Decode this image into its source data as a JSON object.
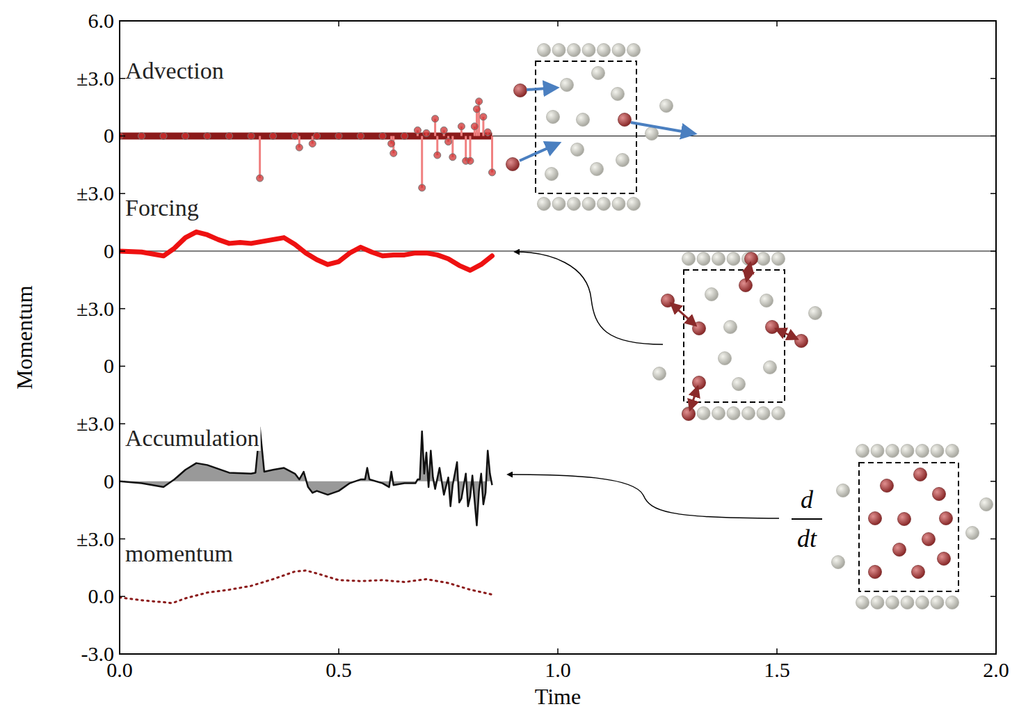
{
  "chart_data": [
    {
      "type": "stem",
      "title": "Advection",
      "xlim": [
        0,
        2
      ],
      "ylim": [
        -3,
        6
      ],
      "yticks": [
        0,
        {
          "value": 3,
          "label": "±3.0"
        },
        {
          "value": 6,
          "label": "6.0"
        }
      ],
      "series": [
        {
          "name": "Advection",
          "color": "#d03030",
          "type": "stem",
          "marker": "circle",
          "x": [
            0,
            0.05,
            0.1,
            0.15,
            0.2,
            0.25,
            0.3,
            0.32,
            0.35,
            0.4,
            0.41,
            0.44,
            0.45,
            0.5,
            0.55,
            0.6,
            0.62,
            0.625,
            0.65,
            0.68,
            0.69,
            0.7,
            0.72,
            0.725,
            0.74,
            0.75,
            0.76,
            0.78,
            0.79,
            0.8,
            0.81,
            0.815,
            0.82,
            0.83,
            0.84,
            0.85
          ],
          "values": [
            0,
            0,
            0,
            0,
            0,
            0,
            0,
            -2.2,
            0,
            0,
            -0.6,
            -0.4,
            0,
            0,
            0,
            0,
            -0.4,
            -0.9,
            0,
            0.3,
            -2.7,
            0.15,
            0.9,
            -1.0,
            0.3,
            -0.3,
            -1.1,
            0.5,
            -1.3,
            -1.3,
            0.5,
            1.4,
            1.8,
            1.0,
            0.2,
            -1.9
          ]
        }
      ]
    },
    {
      "type": "line",
      "title": "Forcing",
      "xlim": [
        0,
        2
      ],
      "ylim": [
        -3,
        3
      ],
      "yticks": [
        0,
        {
          "value": 3,
          "label": "±3.0"
        }
      ],
      "series": [
        {
          "name": "Forcing",
          "color": "#ee1111",
          "type": "line",
          "line_style": "solid",
          "x": [
            0,
            0.05,
            0.1,
            0.125,
            0.15,
            0.175,
            0.2,
            0.225,
            0.25,
            0.275,
            0.3,
            0.325,
            0.35,
            0.375,
            0.4,
            0.425,
            0.45,
            0.475,
            0.5,
            0.525,
            0.55,
            0.575,
            0.6,
            0.625,
            0.65,
            0.675,
            0.7,
            0.725,
            0.75,
            0.775,
            0.8,
            0.825,
            0.85
          ],
          "values": [
            0,
            -0.05,
            -0.25,
            0.15,
            0.7,
            1.0,
            0.85,
            0.6,
            0.4,
            0.45,
            0.4,
            0.5,
            0.6,
            0.7,
            0.35,
            -0.1,
            -0.45,
            -0.7,
            -0.55,
            -0.1,
            0.2,
            -0.05,
            -0.25,
            -0.2,
            -0.2,
            -0.1,
            -0.1,
            -0.2,
            -0.4,
            -0.75,
            -1.0,
            -0.7,
            -0.25
          ]
        }
      ]
    },
    {
      "type": "line",
      "xlim": [
        0,
        2
      ],
      "ylim": [
        -3,
        3
      ],
      "y_label": "Momentum",
      "yticks": [
        0,
        {
          "value": 3,
          "label": "±3.0"
        }
      ],
      "series": []
    },
    {
      "type": "area",
      "title": "Accumulation",
      "xlim": [
        0,
        2
      ],
      "ylim": [
        -3,
        3
      ],
      "yticks": [
        0,
        {
          "value": 3,
          "label": "±3.0"
        }
      ],
      "series": [
        {
          "name": "Accumulation",
          "color": "#111111",
          "type": "area",
          "x": [
            0,
            0.05,
            0.1,
            0.125,
            0.15,
            0.175,
            0.2,
            0.25,
            0.3,
            0.31,
            0.32,
            0.33,
            0.35,
            0.375,
            0.4,
            0.41,
            0.42,
            0.43,
            0.44,
            0.45,
            0.475,
            0.5,
            0.525,
            0.55,
            0.56,
            0.565,
            0.57,
            0.6,
            0.615,
            0.62,
            0.625,
            0.65,
            0.675,
            0.68,
            0.685,
            0.69,
            0.695,
            0.7,
            0.705,
            0.71,
            0.715,
            0.72,
            0.73,
            0.74,
            0.75,
            0.755,
            0.76,
            0.77,
            0.775,
            0.78,
            0.79,
            0.795,
            0.8,
            0.805,
            0.81,
            0.815,
            0.82,
            0.825,
            0.83,
            0.835,
            0.84,
            0.845,
            0.85
          ],
          "values": [
            0,
            -0.1,
            -0.3,
            0.1,
            0.6,
            0.95,
            0.85,
            0.45,
            0.4,
            0.45,
            2.8,
            0.5,
            0.6,
            0.7,
            0.4,
            0.1,
            0.5,
            -0.3,
            -0.6,
            -0.5,
            -0.7,
            -0.5,
            -0.1,
            0.1,
            0.1,
            0.7,
            0.1,
            -0.1,
            -0.3,
            0.5,
            -0.2,
            -0.1,
            -0.1,
            0.1,
            0.1,
            2.6,
            0.4,
            1.5,
            -0.3,
            1.6,
            0.2,
            -0.4,
            0.7,
            -0.7,
            0.2,
            -1.3,
            -0.2,
            1.0,
            -1.1,
            -0.9,
            0.4,
            -1.3,
            -0.8,
            0.3,
            -1.0,
            -2.3,
            -0.5,
            0.4,
            -1.2,
            -0.6,
            1.6,
            0.4,
            -0.2
          ]
        }
      ]
    },
    {
      "type": "line",
      "title": "momentum",
      "xlim": [
        0,
        2
      ],
      "ylim": [
        -3,
        3
      ],
      "x_label": "Time",
      "xticks": [
        {
          "value": 0,
          "label": "0.0"
        },
        0.5,
        {
          "value": 1,
          "label": "1.0"
        },
        1.5,
        {
          "value": 2,
          "label": "2.0"
        }
      ],
      "yticks": [
        {
          "value": -3,
          "label": "-3.0"
        },
        {
          "value": 0,
          "label": "0.0"
        },
        {
          "value": 3,
          "label": "±3.0"
        }
      ],
      "series": [
        {
          "name": "momentum",
          "color": "#8b1a1a",
          "type": "line",
          "line_style": "dotted",
          "x": [
            0,
            0.05,
            0.1,
            0.12,
            0.15,
            0.2,
            0.25,
            0.3,
            0.35,
            0.4,
            0.425,
            0.45,
            0.5,
            0.55,
            0.6,
            0.65,
            0.7,
            0.75,
            0.8,
            0.85
          ],
          "values": [
            -0.05,
            -0.2,
            -0.3,
            -0.35,
            -0.1,
            0.2,
            0.35,
            0.55,
            0.9,
            1.3,
            1.35,
            1.2,
            0.85,
            0.8,
            0.85,
            0.75,
            0.9,
            0.7,
            0.35,
            0.1
          ]
        }
      ]
    }
  ],
  "diagram": {
    "derivative": {
      "numerator": "d",
      "denominator": "dt"
    }
  }
}
